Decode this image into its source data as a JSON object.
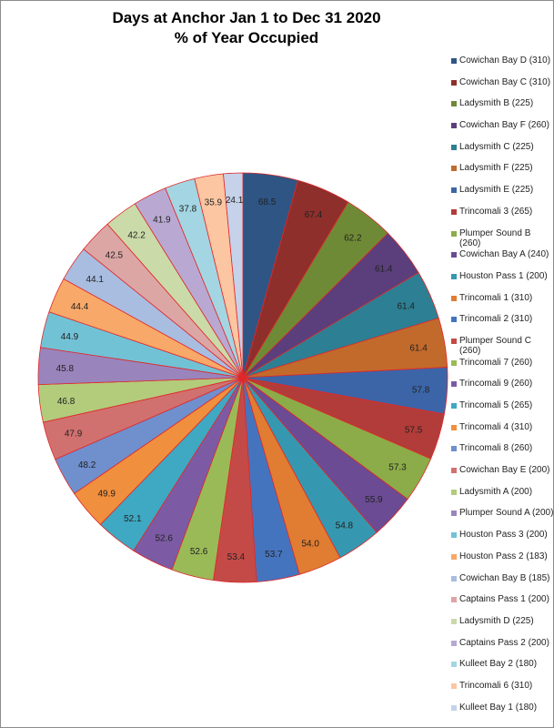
{
  "chart_data": {
    "type": "pie",
    "title_line1": "Days at Anchor Jan 1 to Dec 31 2020",
    "title_line2": "% of Year Occupied",
    "legend_position": "right",
    "slices": [
      {
        "label": "Cowichan Bay D (310)",
        "value": 68.5,
        "color": "#2e5584"
      },
      {
        "label": "Cowichan Bay C (310)",
        "value": 67.4,
        "color": "#8e2f2c"
      },
      {
        "label": "Ladysmith B (225)",
        "value": 62.2,
        "color": "#6f8a36"
      },
      {
        "label": "Cowichan Bay F (260)",
        "value": 61.4,
        "color": "#5a3f7c"
      },
      {
        "label": "Ladysmith C (225)",
        "value": 61.4,
        "color": "#2d7f93"
      },
      {
        "label": "Ladysmith F (225)",
        "value": 61.4,
        "color": "#c26a2c"
      },
      {
        "label": "Ladysmith E (225)",
        "value": 57.8,
        "color": "#3c65a8"
      },
      {
        "label": "Trincomali 3 (265)",
        "value": 57.5,
        "color": "#b23c39"
      },
      {
        "label": "Plumper Sound B (260)",
        "value": 57.3,
        "color": "#8bac48"
      },
      {
        "label": "Cowichan Bay A (240)",
        "value": 55.9,
        "color": "#6b4b93"
      },
      {
        "label": "Houston Pass 1 (200)",
        "value": 54.8,
        "color": "#3698b0"
      },
      {
        "label": "Trincomali 1 (310)",
        "value": 54.0,
        "color": "#e07d32"
      },
      {
        "label": "Trincomali 2 (310)",
        "value": 53.7,
        "color": "#4574be"
      },
      {
        "label": "Plumper Sound C (260)",
        "value": 53.4,
        "color": "#c44a47"
      },
      {
        "label": "Trincomali 7 (260)",
        "value": 52.6,
        "color": "#9aba58"
      },
      {
        "label": "Trincomali 9 (260)",
        "value": 52.6,
        "color": "#7c5ba4"
      },
      {
        "label": "Trincomali 5 (265)",
        "value": 52.1,
        "color": "#3fa8c2"
      },
      {
        "label": "Trincomali 4 (310)",
        "value": 49.9,
        "color": "#f08f3e"
      },
      {
        "label": "Trincomali 8 (260)",
        "value": 48.2,
        "color": "#6f8fcd"
      },
      {
        "label": "Cowichan Bay E (200)",
        "value": 47.9,
        "color": "#d1716f"
      },
      {
        "label": "Ladysmith A (200)",
        "value": 46.8,
        "color": "#b2cc7c"
      },
      {
        "label": "Plumper Sound A (200)",
        "value": 45.8,
        "color": "#9a84bc"
      },
      {
        "label": "Houston Pass 3 (200)",
        "value": 44.9,
        "color": "#72c2d6"
      },
      {
        "label": "Houston Pass 2 (183)",
        "value": 44.4,
        "color": "#f8a868"
      },
      {
        "label": "Cowichan Bay B (185)",
        "value": 44.1,
        "color": "#a8bde0"
      },
      {
        "label": "Captains Pass 1 (200)",
        "value": 42.5,
        "color": "#dca6a5"
      },
      {
        "label": "Ladysmith D (225)",
        "value": 42.2,
        "color": "#cadaa9"
      },
      {
        "label": "Captains Pass 2 (200)",
        "value": 41.9,
        "color": "#b9a9d2"
      },
      {
        "label": "Kulleet Bay 2 (180)",
        "value": 37.8,
        "color": "#a3d6e2"
      },
      {
        "label": "Trincomali 6 (310)",
        "value": 35.9,
        "color": "#fbc6a1"
      },
      {
        "label": "Kulleet Bay 1 (180)",
        "value": 24.1,
        "color": "#c6d2ea"
      }
    ]
  }
}
